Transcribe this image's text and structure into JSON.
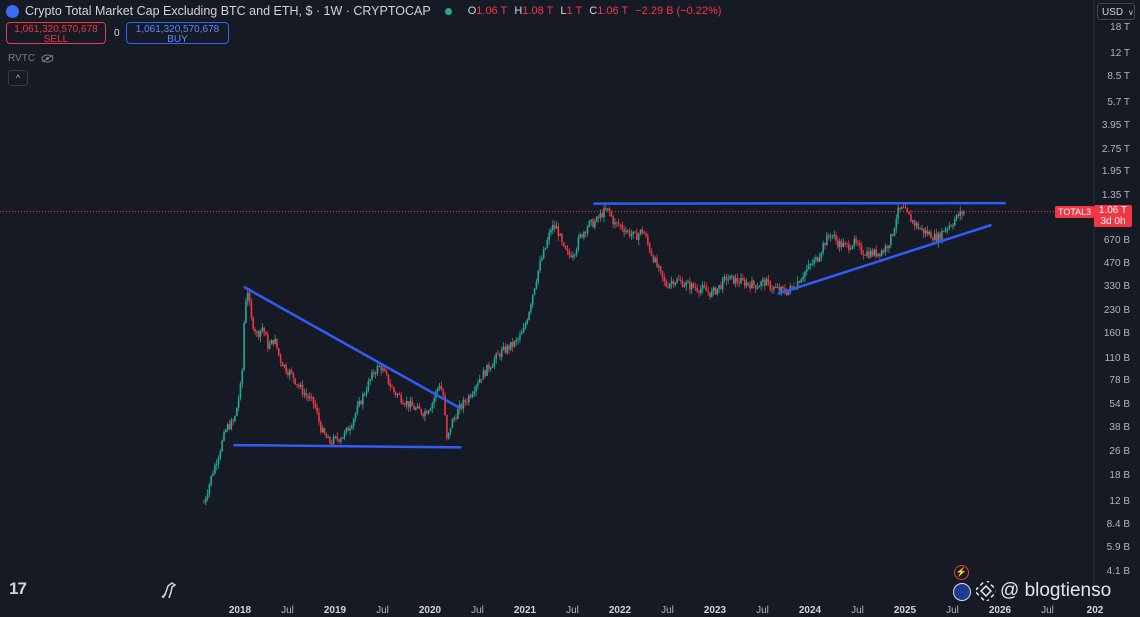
{
  "legend": {
    "title": "Crypto Total Market Cap Excluding BTC and ETH, $ · 1W · CRYPTOCAP",
    "o_label": "O",
    "o_value": "1.06 T",
    "h_label": "H",
    "h_value": "1.08 T",
    "l_label": "L",
    "l_value": "1 T",
    "c_label": "C",
    "c_value": "1.06 T",
    "change": "−2.29 B (−0.22%)"
  },
  "trade": {
    "sell_value": "1,061,320,570,678",
    "sell_label": "SELL",
    "spread": "0",
    "buy_value": "1,061,320,570,678",
    "buy_label": "BUY"
  },
  "indicator": {
    "name": "RVTC"
  },
  "currency": "USD",
  "price_tag": {
    "series": "TOTAL3",
    "value": "1.06 T",
    "countdown": "3d 0h"
  },
  "watermark": "@ blogtienso",
  "colors": {
    "up": "#22ab94",
    "down": "#f23645",
    "trendline": "#2f5df5",
    "background": "#161a25"
  },
  "chart_data": {
    "type": "candlestick",
    "title": "Crypto Total Market Cap Excluding BTC and ETH",
    "interval": "1W",
    "y_scale": "log",
    "y_ticks": [
      "18 T",
      "12 T",
      "8.5 T",
      "5.7 T",
      "3.95 T",
      "2.75 T",
      "1.95 T",
      "1.35 T",
      "670 B",
      "470 B",
      "330 B",
      "230 B",
      "160 B",
      "110 B",
      "78 B",
      "54 B",
      "38 B",
      "26 B",
      "18 B",
      "12 B",
      "8.4 B",
      "5.9 B",
      "4.1 B"
    ],
    "y_tick_values": [
      18000,
      12000,
      8500,
      5700,
      3950,
      2750,
      1950,
      1350,
      670,
      470,
      330,
      230,
      160,
      110,
      78,
      54,
      38,
      26,
      18,
      12,
      8.4,
      5.9,
      4.1
    ],
    "x_ticks": [
      "2018",
      "Jul",
      "2019",
      "Jul",
      "2020",
      "Jul",
      "2021",
      "Jul",
      "2022",
      "Jul",
      "2023",
      "Jul",
      "2024",
      "Jul",
      "2025",
      "Jul",
      "2026",
      "Jul",
      "202"
    ],
    "x_tick_dates": [
      2018.0,
      2018.5,
      2019.0,
      2019.5,
      2020.0,
      2020.5,
      2021.0,
      2021.5,
      2022.0,
      2022.5,
      2023.0,
      2023.5,
      2024.0,
      2024.5,
      2025.0,
      2025.5,
      2026.0,
      2026.5,
      2027.0
    ],
    "series_path": [
      [
        2017.62,
        12
      ],
      [
        2017.7,
        18
      ],
      [
        2017.78,
        26
      ],
      [
        2017.86,
        38
      ],
      [
        2017.94,
        42
      ],
      [
        2018.02,
        80
      ],
      [
        2018.05,
        250
      ],
      [
        2018.08,
        320
      ],
      [
        2018.12,
        200
      ],
      [
        2018.18,
        160
      ],
      [
        2018.24,
        180
      ],
      [
        2018.3,
        130
      ],
      [
        2018.36,
        150
      ],
      [
        2018.42,
        110
      ],
      [
        2018.48,
        95
      ],
      [
        2018.55,
        85
      ],
      [
        2018.62,
        72
      ],
      [
        2018.7,
        62
      ],
      [
        2018.78,
        55
      ],
      [
        2018.86,
        36
      ],
      [
        2018.94,
        30
      ],
      [
        2019.02,
        32
      ],
      [
        2019.1,
        34
      ],
      [
        2019.18,
        42
      ],
      [
        2019.26,
        55
      ],
      [
        2019.34,
        72
      ],
      [
        2019.42,
        92
      ],
      [
        2019.48,
        98
      ],
      [
        2019.55,
        80
      ],
      [
        2019.62,
        66
      ],
      [
        2019.7,
        60
      ],
      [
        2019.78,
        54
      ],
      [
        2019.86,
        50
      ],
      [
        2019.94,
        48
      ],
      [
        2020.02,
        55
      ],
      [
        2020.1,
        75
      ],
      [
        2020.14,
        62
      ],
      [
        2020.18,
        30
      ],
      [
        2020.22,
        40
      ],
      [
        2020.3,
        50
      ],
      [
        2020.4,
        60
      ],
      [
        2020.5,
        78
      ],
      [
        2020.58,
        90
      ],
      [
        2020.66,
        105
      ],
      [
        2020.74,
        120
      ],
      [
        2020.82,
        130
      ],
      [
        2020.9,
        140
      ],
      [
        2020.98,
        165
      ],
      [
        2021.04,
        230
      ],
      [
        2021.1,
        340
      ],
      [
        2021.16,
        480
      ],
      [
        2021.22,
        620
      ],
      [
        2021.28,
        840
      ],
      [
        2021.34,
        820
      ],
      [
        2021.4,
        600
      ],
      [
        2021.46,
        540
      ],
      [
        2021.52,
        580
      ],
      [
        2021.58,
        720
      ],
      [
        2021.66,
        860
      ],
      [
        2021.74,
        900
      ],
      [
        2021.82,
        1050
      ],
      [
        2021.88,
        1080
      ],
      [
        2021.94,
        880
      ],
      [
        2022.0,
        860
      ],
      [
        2022.08,
        780
      ],
      [
        2022.16,
        720
      ],
      [
        2022.24,
        800
      ],
      [
        2022.32,
        580
      ],
      [
        2022.4,
        440
      ],
      [
        2022.48,
        340
      ],
      [
        2022.56,
        370
      ],
      [
        2022.64,
        360
      ],
      [
        2022.72,
        340
      ],
      [
        2022.8,
        330
      ],
      [
        2022.88,
        320
      ],
      [
        2022.96,
        300
      ],
      [
        2023.04,
        330
      ],
      [
        2023.12,
        380
      ],
      [
        2023.2,
        370
      ],
      [
        2023.28,
        360
      ],
      [
        2023.36,
        350
      ],
      [
        2023.44,
        340
      ],
      [
        2023.52,
        360
      ],
      [
        2023.6,
        330
      ],
      [
        2023.68,
        315
      ],
      [
        2023.76,
        310
      ],
      [
        2023.84,
        340
      ],
      [
        2023.92,
        400
      ],
      [
        2024.0,
        460
      ],
      [
        2024.08,
        520
      ],
      [
        2024.14,
        640
      ],
      [
        2024.22,
        760
      ],
      [
        2024.3,
        650
      ],
      [
        2024.38,
        620
      ],
      [
        2024.46,
        660
      ],
      [
        2024.54,
        580
      ],
      [
        2024.62,
        560
      ],
      [
        2024.7,
        560
      ],
      [
        2024.78,
        590
      ],
      [
        2024.86,
        720
      ],
      [
        2024.92,
        1050
      ],
      [
        2024.98,
        1100
      ],
      [
        2025.04,
        980
      ],
      [
        2025.12,
        860
      ],
      [
        2025.2,
        780
      ],
      [
        2025.28,
        740
      ],
      [
        2025.34,
        700
      ],
      [
        2025.42,
        820
      ],
      [
        2025.5,
        900
      ],
      [
        2025.56,
        1000
      ],
      [
        2025.62,
        1060
      ]
    ],
    "trendlines": [
      {
        "from": [
          2018.05,
          330
        ],
        "to": [
          2020.3,
          52
        ]
      },
      {
        "from": [
          2017.94,
          29
        ],
        "to": [
          2020.32,
          28
        ]
      },
      {
        "from": [
          2021.73,
          1200
        ],
        "to": [
          2026.05,
          1210
        ]
      },
      {
        "from": [
          2023.67,
          300
        ],
        "to": [
          2025.9,
          860
        ]
      }
    ],
    "last_value": 1060,
    "grid": false,
    "legend_position": "top-left"
  }
}
